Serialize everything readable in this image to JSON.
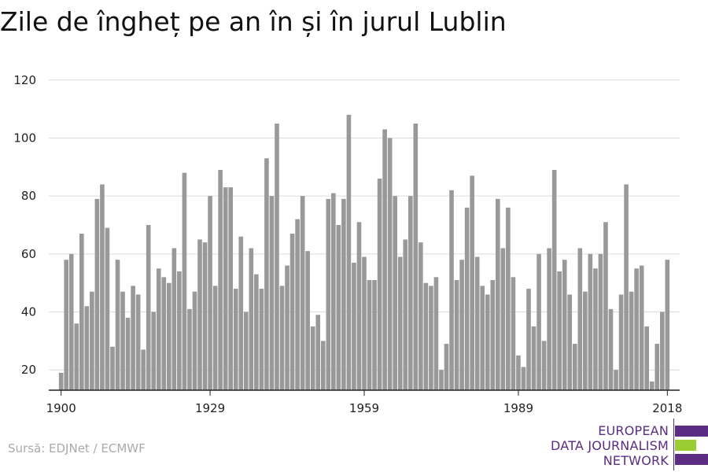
{
  "source": "Sursă: EDJNet / ECMWF",
  "logo": {
    "lines": [
      "EUROPEAN",
      "DATA JOURNALISM",
      "NETWORK"
    ],
    "colors": {
      "purple": "#5a2d82",
      "green": "#9acd32"
    }
  },
  "chart_data": {
    "type": "bar",
    "title": "Zile de îngheț pe an în și în jurul Lublin",
    "xlabel": "",
    "ylabel": "",
    "x": [
      1900,
      1901,
      1902,
      1903,
      1904,
      1905,
      1906,
      1907,
      1908,
      1909,
      1910,
      1911,
      1912,
      1913,
      1914,
      1915,
      1916,
      1917,
      1918,
      1919,
      1920,
      1921,
      1922,
      1923,
      1924,
      1925,
      1926,
      1927,
      1928,
      1929,
      1930,
      1931,
      1932,
      1933,
      1934,
      1935,
      1936,
      1937,
      1938,
      1939,
      1940,
      1941,
      1942,
      1943,
      1944,
      1945,
      1946,
      1947,
      1948,
      1949,
      1950,
      1951,
      1952,
      1953,
      1954,
      1955,
      1956,
      1957,
      1958,
      1959,
      1960,
      1961,
      1962,
      1963,
      1964,
      1965,
      1966,
      1967,
      1968,
      1969,
      1970,
      1971,
      1972,
      1973,
      1974,
      1975,
      1976,
      1977,
      1978,
      1979,
      1980,
      1981,
      1982,
      1983,
      1984,
      1985,
      1986,
      1987,
      1988,
      1989,
      1990,
      1991,
      1992,
      1993,
      1994,
      1995,
      1996,
      1997,
      1998,
      1999,
      2000,
      2001,
      2002,
      2003,
      2004,
      2005,
      2006,
      2007,
      2008,
      2009,
      2010,
      2011,
      2012,
      2013,
      2014,
      2015,
      2016,
      2017,
      2018
    ],
    "values": [
      19,
      58,
      60,
      36,
      67,
      42,
      47,
      79,
      84,
      69,
      28,
      58,
      47,
      38,
      49,
      46,
      27,
      70,
      40,
      55,
      52,
      50,
      62,
      54,
      88,
      41,
      47,
      65,
      64,
      80,
      49,
      89,
      83,
      83,
      48,
      66,
      40,
      62,
      53,
      48,
      93,
      80,
      105,
      49,
      56,
      67,
      72,
      80,
      61,
      35,
      39,
      30,
      79,
      81,
      70,
      79,
      108,
      57,
      71,
      59,
      51,
      51,
      86,
      103,
      100,
      80,
      59,
      65,
      80,
      105,
      64,
      50,
      49,
      52,
      20,
      29,
      82,
      51,
      58,
      76,
      87,
      59,
      49,
      46,
      51,
      79,
      62,
      76,
      52,
      25,
      21,
      48,
      35,
      60,
      30,
      62,
      89,
      54,
      58,
      46,
      29,
      62,
      47,
      60,
      55,
      60,
      71,
      41,
      20,
      46,
      84,
      47,
      55,
      56,
      35,
      16,
      29,
      40,
      58
    ],
    "xticks": [
      1900,
      1929,
      1959,
      1989,
      2018
    ],
    "yticks": [
      20,
      40,
      60,
      80,
      100,
      120
    ],
    "ylim": [
      13,
      127
    ],
    "grid": true,
    "bar_color": "#999999",
    "grid_color": "#dcdcdc",
    "axis_color": "#222222"
  }
}
